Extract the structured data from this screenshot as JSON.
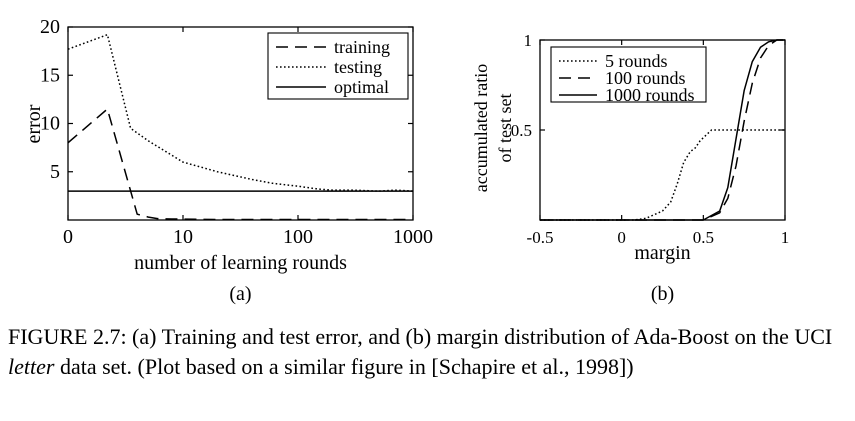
{
  "chart_data": [
    {
      "type": "line",
      "ylabel": "error",
      "xlabel": "number of learning rounds",
      "panel_label": "(a)",
      "x_scale": "log",
      "x_ticks": [
        {
          "value": 1,
          "label": "0"
        },
        {
          "value": 10,
          "label": "10"
        },
        {
          "value": 100,
          "label": "100"
        },
        {
          "value": 1000,
          "label": "1000"
        }
      ],
      "y_ticks": [
        {
          "value": 5,
          "label": "5"
        },
        {
          "value": 10,
          "label": "10"
        },
        {
          "value": 15,
          "label": "15"
        },
        {
          "value": 20,
          "label": "20"
        }
      ],
      "xlim": [
        1,
        1000
      ],
      "ylim": [
        0,
        20
      ],
      "legend_position": "top-right",
      "series": [
        {
          "name": "training",
          "style": "dashed",
          "x": [
            1,
            2.2,
            4,
            5,
            6,
            8,
            20,
            1000
          ],
          "y": [
            8,
            11.5,
            0.6,
            0.3,
            0.15,
            0.1,
            0.05,
            0.05
          ]
        },
        {
          "name": "testing",
          "style": "dotted",
          "x": [
            1,
            2.2,
            3.5,
            5,
            10,
            20,
            40,
            60,
            100,
            150,
            200,
            300,
            500,
            700,
            1000
          ],
          "y": [
            17.7,
            19.2,
            9.5,
            8.2,
            6,
            5,
            4.2,
            3.8,
            3.5,
            3.2,
            3.1,
            3.1,
            3.0,
            3.1,
            3.0
          ]
        },
        {
          "name": "optimal",
          "style": "solid",
          "x": [
            1,
            1000
          ],
          "y": [
            3.0,
            3.0
          ]
        }
      ]
    },
    {
      "type": "line",
      "ylabel": "accumulated ratio of test set",
      "ylabel_lines": [
        "accumulated ratio",
        "of test set"
      ],
      "xlabel": "margin",
      "panel_label": "(b)",
      "x_ticks": [
        {
          "value": -0.5,
          "label": "-0.5"
        },
        {
          "value": 0,
          "label": "0"
        },
        {
          "value": 0.5,
          "label": "0.5"
        },
        {
          "value": 1,
          "label": "1"
        }
      ],
      "y_ticks": [
        {
          "value": 0.5,
          "label": "0.5"
        },
        {
          "value": 1,
          "label": "1"
        }
      ],
      "xlim": [
        -0.5,
        1
      ],
      "ylim": [
        0,
        1
      ],
      "legend_position": "top-left",
      "series": [
        {
          "name": "5 rounds",
          "style": "dotted",
          "x": [
            -0.5,
            0.08,
            0.15,
            0.2,
            0.25,
            0.3,
            0.34,
            0.38,
            0.42,
            0.45,
            0.48,
            0.55,
            1.0
          ],
          "y": [
            0,
            0,
            0.01,
            0.03,
            0.05,
            0.1,
            0.2,
            0.32,
            0.38,
            0.4,
            0.44,
            0.5,
            0.5
          ]
        },
        {
          "name": "100 rounds",
          "style": "dashed",
          "x": [
            -0.5,
            0.5,
            0.6,
            0.65,
            0.7,
            0.75,
            0.8,
            0.85,
            0.9,
            0.95,
            1.0
          ],
          "y": [
            0,
            0.0,
            0.04,
            0.12,
            0.3,
            0.55,
            0.76,
            0.9,
            0.97,
            1.0,
            1.0
          ]
        },
        {
          "name": "1000 rounds",
          "style": "solid",
          "x": [
            -0.5,
            0.5,
            0.6,
            0.65,
            0.7,
            0.75,
            0.8,
            0.85,
            0.9,
            0.95,
            1.0
          ],
          "y": [
            0,
            0.0,
            0.05,
            0.18,
            0.45,
            0.72,
            0.88,
            0.96,
            0.99,
            1.0,
            1.0
          ]
        }
      ]
    }
  ],
  "caption": {
    "pre": "FIGURE 2.7: (a) Training and test error, and (b) margin distribution of Ada-Boost on the UCI ",
    "italic": "letter",
    "post": " data set. (Plot based on a similar figure in [Schapire et al., 1998])"
  }
}
